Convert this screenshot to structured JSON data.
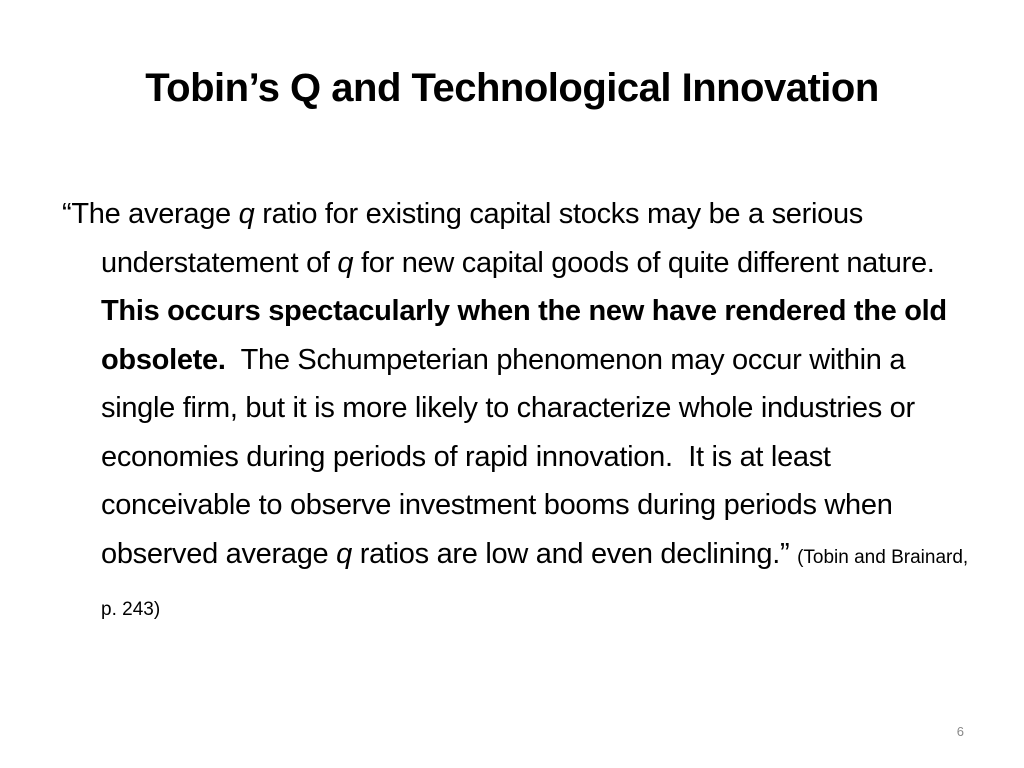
{
  "slide": {
    "title": "Tobin’s Q and Technological Innovation",
    "body": {
      "segments": [
        {
          "text": "“The average ",
          "style": "normal"
        },
        {
          "text": "q",
          "style": "italic"
        },
        {
          "text": " ratio for existing capital stocks may be a serious understatement of ",
          "style": "normal"
        },
        {
          "text": "q",
          "style": "italic"
        },
        {
          "text": " for new capital goods of quite different nature.  ",
          "style": "normal"
        },
        {
          "text": "This occurs spectacularly when the new have rendered the old obsolete.",
          "style": "bold"
        },
        {
          "text": "  The Schumpeterian phenomenon may occur within a single firm, but it is more likely to characterize whole industries or economies during periods of rapid innovation.  It is at least conceivable to observe investment booms during periods when observed average ",
          "style": "normal"
        },
        {
          "text": "q",
          "style": "italic"
        },
        {
          "text": " ratios are low and even declining.”",
          "style": "normal"
        }
      ],
      "citation": "(Tobin and Brainard, p. 243)"
    },
    "page_number": "6"
  }
}
